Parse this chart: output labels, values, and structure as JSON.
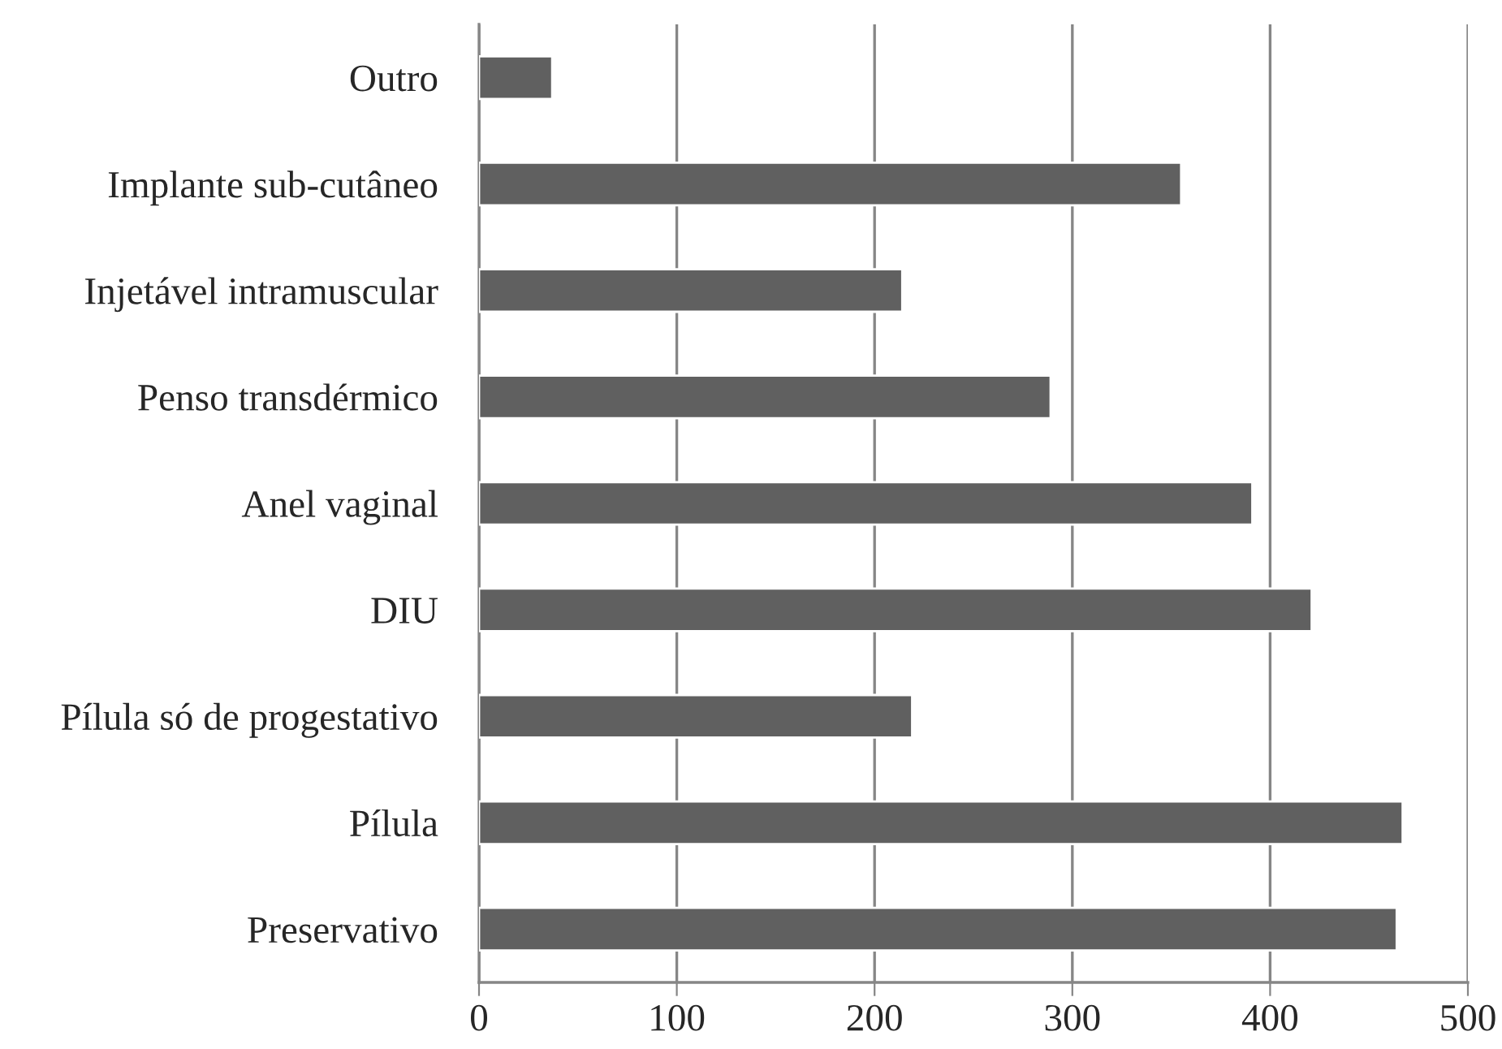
{
  "chart_data": {
    "type": "bar",
    "orientation": "horizontal",
    "categories": [
      "Outro",
      "Implante sub-cutâneo",
      "Injetável intramuscular",
      "Penso transdérmico",
      "Anel vaginal",
      "DIU",
      "Pílula só de progestativo",
      "Pílula",
      "Preservativo"
    ],
    "values": [
      37,
      355,
      214,
      289,
      391,
      421,
      219,
      467,
      464
    ],
    "color": "#606060",
    "xlim": [
      0,
      500
    ],
    "xticks": [
      0,
      100,
      200,
      300,
      400,
      500
    ],
    "grid": "x"
  }
}
